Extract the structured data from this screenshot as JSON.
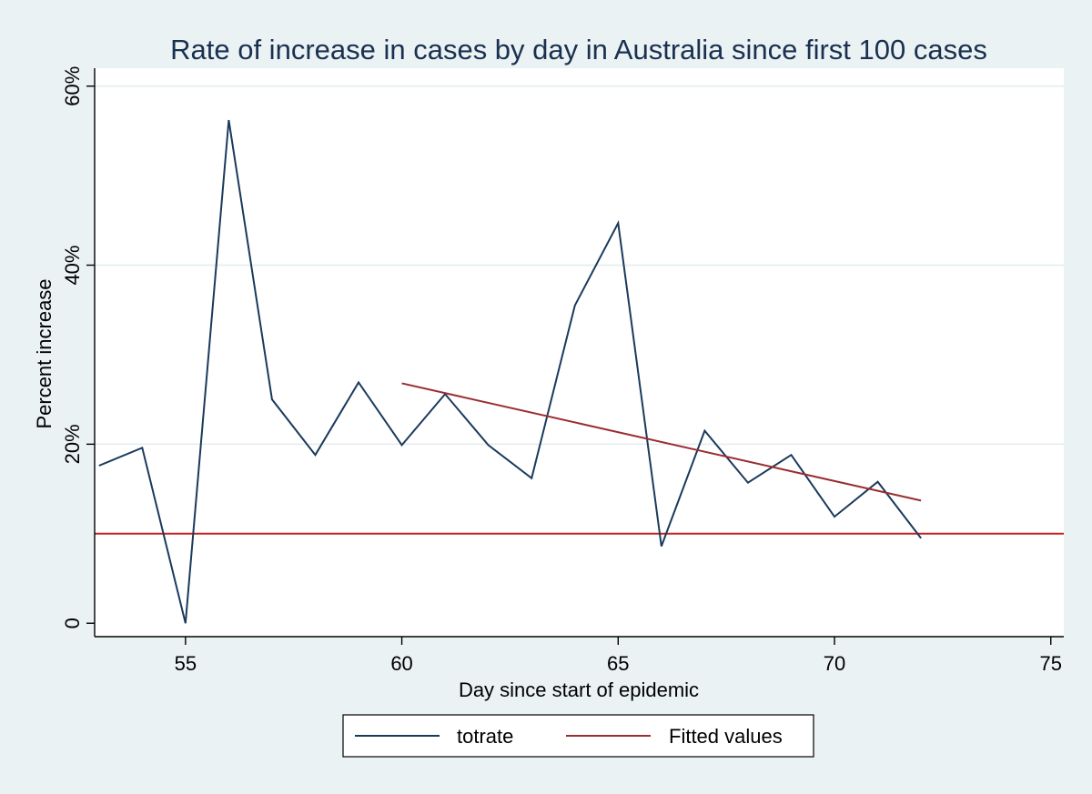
{
  "chart_data": {
    "type": "line",
    "title": "Rate of increase in cases by day in Australia since first 100 cases",
    "xlabel": "Day since start of epidemic",
    "ylabel": "Percent increase",
    "xlim": [
      52.9,
      75.3
    ],
    "ylim": [
      -1.5,
      62
    ],
    "x_ticks": [
      {
        "value": 55,
        "label": "55"
      },
      {
        "value": 60,
        "label": "60"
      },
      {
        "value": 65,
        "label": "65"
      },
      {
        "value": 70,
        "label": "70"
      },
      {
        "value": 75,
        "label": "75"
      }
    ],
    "y_ticks": [
      {
        "value": 0,
        "label": "0"
      },
      {
        "value": 20,
        "label": "20%"
      },
      {
        "value": 40,
        "label": "40%"
      },
      {
        "value": 60,
        "label": "60%"
      }
    ],
    "grid": "horizontal",
    "legend_position": "bottom",
    "series": [
      {
        "name": "totrate",
        "color": "#1a3a5c",
        "x": [
          53,
          54,
          55,
          56,
          57,
          58,
          59,
          60,
          61,
          62,
          63,
          64,
          65,
          66,
          67,
          68,
          69,
          70,
          71,
          72
        ],
        "y": [
          17.6,
          19.6,
          0.0,
          56.2,
          25.0,
          18.8,
          26.9,
          19.9,
          25.6,
          19.9,
          16.2,
          35.5,
          44.7,
          8.6,
          21.5,
          15.7,
          18.8,
          11.9,
          15.8,
          9.5
        ]
      },
      {
        "name": "Fitted values",
        "color": "#9b2d30",
        "x": [
          60,
          72
        ],
        "y": [
          26.8,
          13.7
        ]
      }
    ],
    "reference_lines": [
      {
        "axis": "y",
        "value": 10,
        "color": "#c81e1e"
      }
    ],
    "colors": {
      "background": "#eaf2f3",
      "plot_background": "#ffffff",
      "grid": "#e3ecee",
      "title": "#1a3050"
    }
  }
}
